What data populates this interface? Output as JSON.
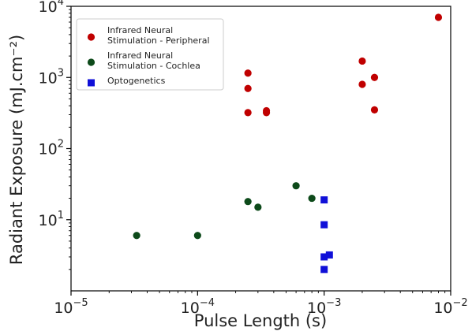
{
  "chart_data": {
    "type": "scatter",
    "title": "",
    "xlabel": "Pulse Length (s)",
    "ylabel": "Radiant Exposure (mJ.cm⁻²)",
    "xscale": "log",
    "yscale": "log",
    "xlim": [
      1e-05,
      0.01
    ],
    "ylim": [
      1,
      10000
    ],
    "grid": false,
    "legend_position": "top-left",
    "x_ticks": [
      {
        "value": 1e-05,
        "base": "10",
        "exp": "−5"
      },
      {
        "value": 0.0001,
        "base": "10",
        "exp": "−4"
      },
      {
        "value": 0.001,
        "base": "10",
        "exp": "−3"
      },
      {
        "value": 0.01,
        "base": "10",
        "exp": "−2"
      }
    ],
    "y_ticks": [
      {
        "value": 10,
        "base": "10",
        "exp": "1"
      },
      {
        "value": 100,
        "base": "10",
        "exp": "2"
      },
      {
        "value": 1000,
        "base": "10",
        "exp": "3"
      },
      {
        "value": 10000,
        "base": "10",
        "exp": "4"
      }
    ],
    "series": [
      {
        "name_lines": [
          "Infrared Neural",
          "Stimulation - Peripheral"
        ],
        "color": "#c00000",
        "marker": "circle",
        "points": [
          [
            0.00025,
            1150
          ],
          [
            0.00025,
            700
          ],
          [
            0.00025,
            320
          ],
          [
            0.00035,
            340
          ],
          [
            0.00035,
            320
          ],
          [
            0.002,
            1700
          ],
          [
            0.002,
            800
          ],
          [
            0.0025,
            1000
          ],
          [
            0.0025,
            350
          ],
          [
            0.008,
            7000
          ]
        ]
      },
      {
        "name_lines": [
          "Infrared Neural",
          "Stimulation - Cochlea"
        ],
        "color": "#0d4a1a",
        "marker": "circle",
        "points": [
          [
            3.3e-05,
            6
          ],
          [
            0.0001,
            6
          ],
          [
            0.00025,
            18
          ],
          [
            0.0003,
            15
          ],
          [
            0.0006,
            30
          ],
          [
            0.0008,
            20
          ]
        ]
      },
      {
        "name_lines": [
          "Optogenetics"
        ],
        "color": "#1010d8",
        "marker": "square",
        "points": [
          [
            0.001,
            19
          ],
          [
            0.001,
            8.5
          ],
          [
            0.001,
            3
          ],
          [
            0.0011,
            3.2
          ],
          [
            0.001,
            2
          ]
        ]
      }
    ]
  }
}
